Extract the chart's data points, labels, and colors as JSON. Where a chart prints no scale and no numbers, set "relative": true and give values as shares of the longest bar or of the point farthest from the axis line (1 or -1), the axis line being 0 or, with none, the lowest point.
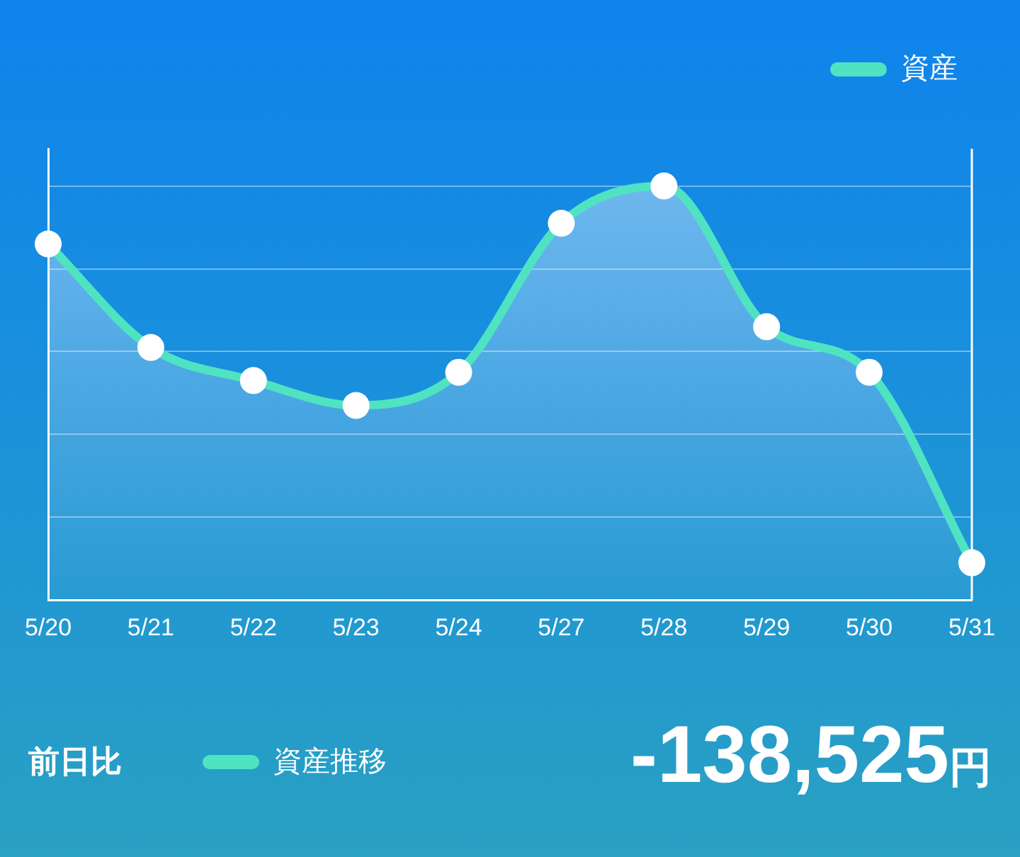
{
  "chart_data": {
    "type": "area",
    "categories": [
      "5/20",
      "5/21",
      "5/22",
      "5/23",
      "5/24",
      "5/27",
      "5/28",
      "5/29",
      "5/30",
      "5/31"
    ],
    "series": [
      {
        "name": "資産",
        "color": "#4fe3c2",
        "values": [
          0.86,
          0.61,
          0.53,
          0.47,
          0.55,
          0.91,
          1,
          0.66,
          0.55,
          0.09
        ]
      }
    ],
    "relative": true,
    "grid": "y",
    "legend": "top right",
    "marker": "circle",
    "annotations": [
      "前日比",
      "資産推移",
      "-138,525円"
    ]
  }
}
